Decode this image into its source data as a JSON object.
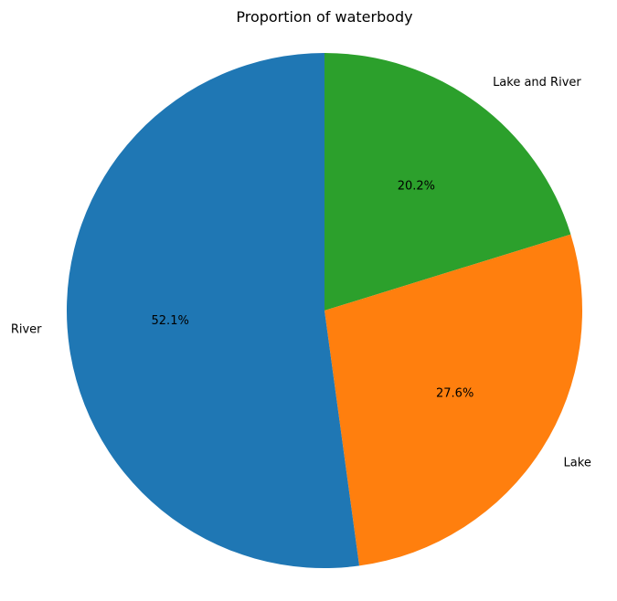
{
  "chart_data": {
    "type": "pie",
    "title": "Proportion of waterbody",
    "categories": [
      "Lake and River",
      "Lake",
      "River"
    ],
    "values": [
      20.2,
      27.6,
      52.1
    ],
    "percent_labels": [
      "20.2%",
      "27.6%",
      "52.1%"
    ],
    "colors": [
      "#2ca02c",
      "#ff7f0e",
      "#1f77b4"
    ],
    "start_angle_deg": 90,
    "direction": "clockwise",
    "legend": "none"
  }
}
